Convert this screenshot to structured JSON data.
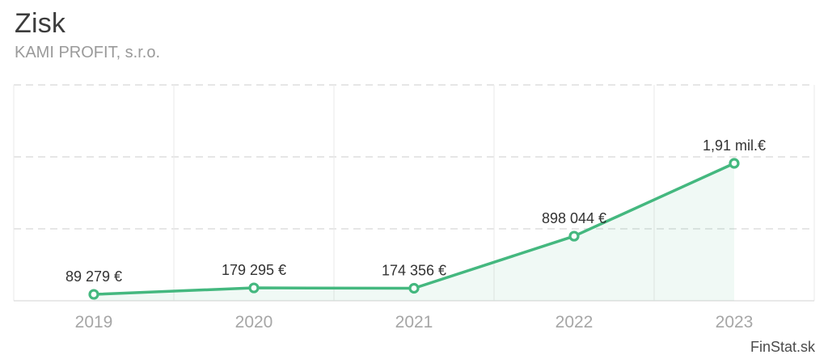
{
  "header": {
    "title": "Zisk",
    "subtitle": "KAMI PROFIT, s.r.o."
  },
  "footer": {
    "watermark": "FinStat.sk"
  },
  "chart_data": {
    "type": "line",
    "title": "Zisk",
    "subtitle": "KAMI PROFIT, s.r.o.",
    "categories": [
      "2019",
      "2020",
      "2021",
      "2022",
      "2023"
    ],
    "series": [
      {
        "name": "Zisk",
        "values": [
          89279,
          179295,
          174356,
          898044,
          1910000
        ]
      }
    ],
    "data_labels": [
      "89 279 €",
      "179 295 €",
      "174 356 €",
      "898 044 €",
      "1,91 mil.€"
    ],
    "xlabel": "",
    "ylabel": "",
    "ylim": [
      0,
      3000000
    ],
    "y_grid_step": 1000000,
    "legend": "none",
    "grid": {
      "horizontal": "dashed",
      "vertical": "solid"
    },
    "area_fill_under_line": true,
    "colors": {
      "line": "#44b87f",
      "marker_fill": "#ffffff",
      "area_fill": "rgba(68,184,127,0.08)",
      "grid_dashed": "#dedede",
      "grid_solid": "#e9e9e9",
      "axis_line": "#e2e2e2",
      "data_label": "#333333",
      "tick_label": "#a6a6a6"
    }
  }
}
